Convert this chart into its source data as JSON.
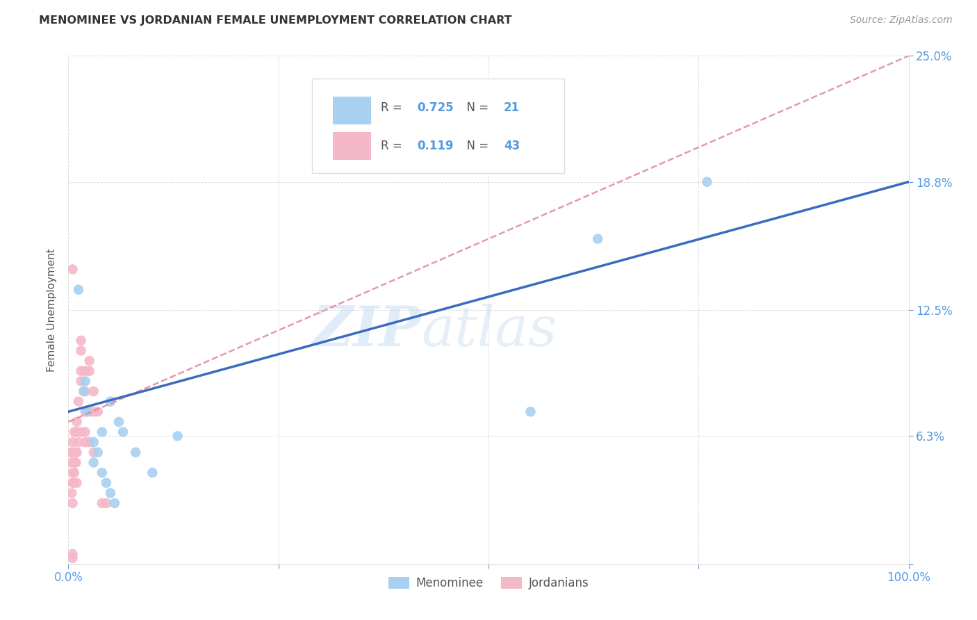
{
  "title": "MENOMINEE VS JORDANIAN FEMALE UNEMPLOYMENT CORRELATION CHART",
  "source": "Source: ZipAtlas.com",
  "ylabel": "Female Unemployment",
  "xlim": [
    0,
    100
  ],
  "ylim": [
    0,
    25
  ],
  "xticks": [
    0,
    25,
    50,
    75,
    100
  ],
  "xtick_labels": [
    "0.0%",
    "",
    "",
    "",
    "100.0%"
  ],
  "yticks": [
    0,
    6.3,
    12.5,
    18.8,
    25.0
  ],
  "ytick_labels": [
    "",
    "6.3%",
    "12.5%",
    "18.8%",
    "25.0%"
  ],
  "R_blue": 0.725,
  "N_blue": 21,
  "R_pink": 0.119,
  "N_pink": 43,
  "blue_color": "#a8d0f0",
  "pink_color": "#f5b8c8",
  "line_blue": "#3a6bbf",
  "line_pink": "#e08898",
  "watermark_zip": "ZIP",
  "watermark_atlas": "atlas",
  "menominee_x": [
    1.2,
    1.8,
    2.2,
    3.0,
    3.5,
    4.0,
    4.5,
    5.0,
    5.5,
    6.0,
    2.0,
    3.0,
    4.0,
    5.0,
    6.5,
    8.0,
    10.0,
    13.0,
    55.0,
    63.0,
    76.0
  ],
  "menominee_y": [
    13.5,
    8.5,
    7.5,
    6.0,
    5.5,
    4.5,
    4.0,
    3.5,
    3.0,
    7.0,
    9.0,
    5.0,
    6.5,
    8.0,
    6.5,
    5.5,
    4.5,
    6.3,
    7.5,
    16.0,
    18.8
  ],
  "jordanian_x": [
    0.3,
    0.4,
    0.5,
    0.5,
    0.5,
    0.6,
    0.7,
    0.8,
    0.9,
    1.0,
    1.0,
    1.0,
    1.2,
    1.5,
    1.5,
    1.5,
    1.5,
    2.0,
    2.0,
    2.0,
    2.0,
    2.5,
    2.5,
    2.5,
    3.0,
    3.0,
    3.5,
    0.4,
    0.5,
    0.6,
    0.7,
    0.8,
    1.0,
    1.2,
    1.5,
    2.0,
    2.5,
    3.0,
    4.0,
    4.5,
    0.5,
    0.5,
    0.5
  ],
  "jordanian_y": [
    5.5,
    5.0,
    6.0,
    4.5,
    4.0,
    5.5,
    6.5,
    5.5,
    5.0,
    7.0,
    6.5,
    5.5,
    8.0,
    9.5,
    9.0,
    10.5,
    11.0,
    9.5,
    8.5,
    7.5,
    6.5,
    7.5,
    9.5,
    10.0,
    8.5,
    7.5,
    7.5,
    3.5,
    3.0,
    4.0,
    4.5,
    5.0,
    4.0,
    6.0,
    6.5,
    6.0,
    6.0,
    5.5,
    3.0,
    3.0,
    0.5,
    0.3,
    14.5
  ]
}
